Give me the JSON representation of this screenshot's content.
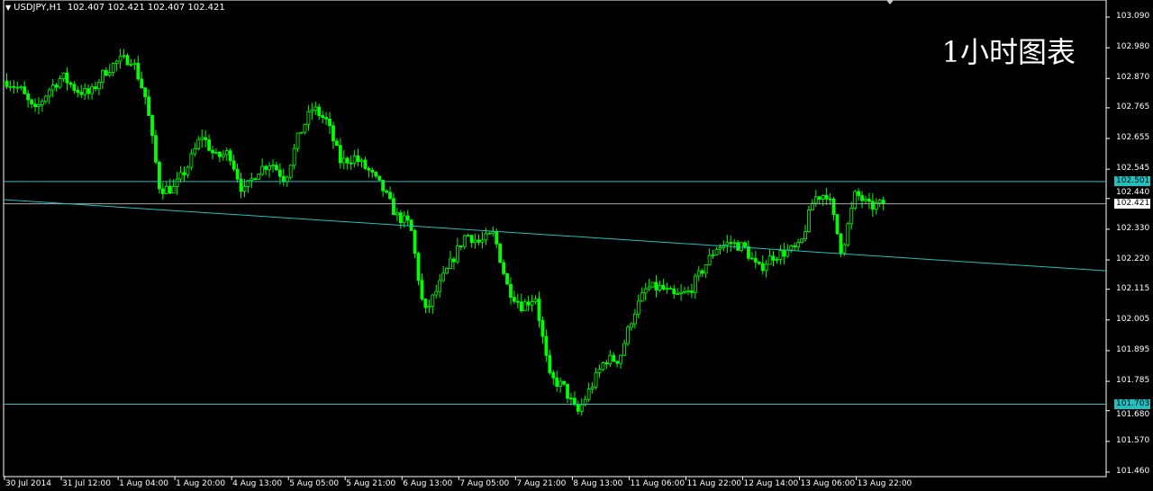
{
  "header": {
    "symbol": "USDJPY,H1",
    "ohlc": "102.407 102.421 102.407 102.421"
  },
  "watermark": "1小时图表",
  "colors": {
    "background": "#000000",
    "candle": "#00ff00",
    "lines": "#20c0c0",
    "axis": "#ffffff",
    "tag": "#20c0c0"
  },
  "chart_data": {
    "type": "candlestick",
    "ylim": [
      101.44,
      103.15
    ],
    "y_ticks": [
      "103.090",
      "102.980",
      "102.870",
      "102.765",
      "102.655",
      "102.545",
      "102.440",
      "102.330",
      "102.220",
      "102.115",
      "102.005",
      "101.895",
      "101.785",
      "101.680",
      "101.570",
      "101.460"
    ],
    "x_ticks": [
      "30 Jul 2014",
      "31 Jul 12:00",
      "1 Aug 04:00",
      "1 Aug 20:00",
      "4 Aug 13:00",
      "5 Aug 05:00",
      "5 Aug 21:00",
      "6 Aug 13:00",
      "7 Aug 05:00",
      "7 Aug 21:00",
      "8 Aug 13:00",
      "11 Aug 06:00",
      "11 Aug 22:00",
      "12 Aug 14:00",
      "13 Aug 06:00",
      "13 Aug 22:00"
    ],
    "bars_per_tick": 16,
    "close_path": [
      102.861,
      102.829,
      102.749,
      102.829,
      102.877,
      102.829,
      102.813,
      102.893,
      102.932,
      102.942,
      102.797,
      102.475,
      102.475,
      102.555,
      102.668,
      102.587,
      102.604,
      102.459,
      102.539,
      102.571,
      102.507,
      102.668,
      102.765,
      102.716,
      102.571,
      102.587,
      102.539,
      102.475,
      102.378,
      102.346,
      102.024,
      102.12,
      102.217,
      102.314,
      102.281,
      102.314,
      102.12,
      102.056,
      102.088,
      101.798,
      101.766,
      101.669,
      101.766,
      101.863,
      101.863,
      102.024,
      102.12,
      102.12,
      102.088,
      102.104,
      102.185,
      102.265,
      102.281,
      102.265,
      102.185,
      102.233,
      102.249,
      102.265,
      102.442,
      102.459,
      102.249,
      102.459,
      102.41,
      102.421
    ],
    "horizontal_lines": [
      {
        "price": 102.501,
        "label": "102.501"
      },
      {
        "price": 101.703,
        "label": "101.703"
      }
    ],
    "current_price": {
      "price": 102.421,
      "label": "102.421"
    },
    "trendline": {
      "start_price": 102.436,
      "end_price": 102.181
    }
  }
}
